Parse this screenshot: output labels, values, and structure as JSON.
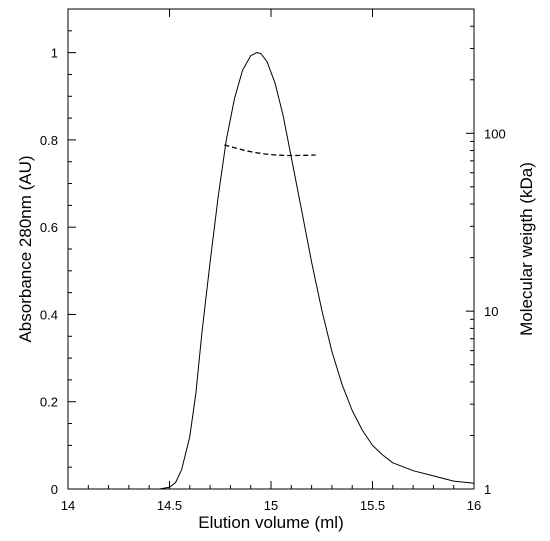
{
  "chart_data": {
    "type": "line",
    "xlabel": "Elution volume (ml)",
    "ylabel_left": "Absorbance 280nm (AU)",
    "ylabel_right": "Molecular weigth (kDa)",
    "xlim": [
      14,
      16
    ],
    "ylim_left": [
      0,
      1.1
    ],
    "ylim_right": [
      1,
      500
    ],
    "yscale_right": "log",
    "grid": false,
    "x_ticks": [
      "14",
      "14.5",
      "15",
      "15.5",
      "16"
    ],
    "y_left_ticks": [
      "0",
      "0.2",
      "0.4",
      "0.6",
      "0.8",
      "1"
    ],
    "y_right_ticks": [
      "1",
      "10",
      "100"
    ],
    "series": [
      {
        "axis": "left",
        "style": "solid",
        "x": [
          14.0,
          14.45,
          14.5,
          14.53,
          14.56,
          14.6,
          14.63,
          14.66,
          14.7,
          14.74,
          14.78,
          14.82,
          14.86,
          14.9,
          14.93,
          14.95,
          14.98,
          15.02,
          15.06,
          15.1,
          15.15,
          15.2,
          15.25,
          15.3,
          15.35,
          15.4,
          15.45,
          15.5,
          15.55,
          15.6,
          15.7,
          15.8,
          15.9,
          16.0
        ],
        "y": [
          0.0,
          0.0,
          0.004,
          0.015,
          0.045,
          0.12,
          0.22,
          0.36,
          0.52,
          0.67,
          0.8,
          0.895,
          0.96,
          0.993,
          1.0,
          0.998,
          0.98,
          0.93,
          0.855,
          0.76,
          0.64,
          0.52,
          0.41,
          0.315,
          0.24,
          0.18,
          0.135,
          0.1,
          0.078,
          0.06,
          0.042,
          0.03,
          0.018,
          0.013
        ]
      },
      {
        "axis": "right",
        "style": "dashed",
        "x": [
          14.77,
          14.82,
          14.87,
          14.92,
          14.97,
          15.02,
          15.07,
          15.12,
          15.17,
          15.22
        ],
        "y": [
          86,
          83,
          80,
          78,
          76.5,
          75.5,
          75,
          75,
          75.2,
          75.5
        ]
      }
    ]
  }
}
